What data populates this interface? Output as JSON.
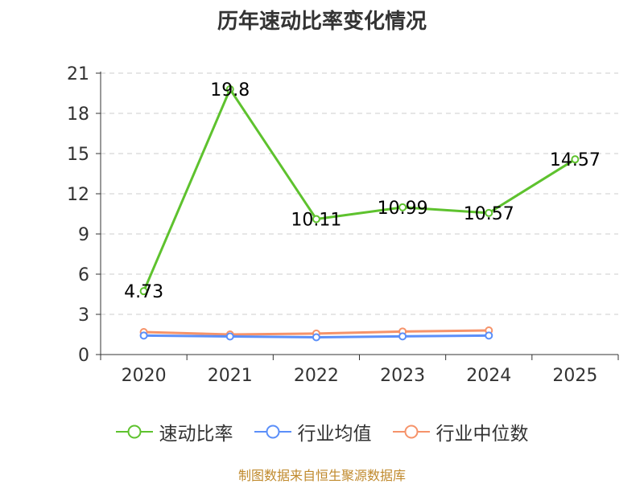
{
  "title": "历年速动比率变化情况",
  "footer": "制图数据来自恒生聚源数据库",
  "chart_data": {
    "type": "line",
    "title": "历年速动比率变化情况",
    "categories": [
      "2020",
      "2021",
      "2022",
      "2023",
      "2024",
      "2025"
    ],
    "ylim": [
      0,
      21
    ],
    "yticks": [
      0,
      3,
      6,
      9,
      12,
      15,
      18,
      21
    ],
    "grid": true,
    "legend_position": "bottom",
    "series": [
      {
        "name": "速动比率",
        "color": "#5ec22e",
        "values": [
          4.73,
          19.8,
          10.11,
          10.99,
          10.57,
          14.57
        ],
        "labels": [
          "4.73",
          "19.8",
          "10.11",
          "10.99",
          "10.57",
          "14.57"
        ]
      },
      {
        "name": "行业均值",
        "color": "#5b8ff9",
        "values": [
          1.42,
          1.35,
          1.29,
          1.36,
          1.42,
          null
        ]
      },
      {
        "name": "行业中位数",
        "color": "#f6936a",
        "values": [
          1.68,
          1.5,
          1.57,
          1.72,
          1.8,
          null
        ]
      }
    ]
  }
}
